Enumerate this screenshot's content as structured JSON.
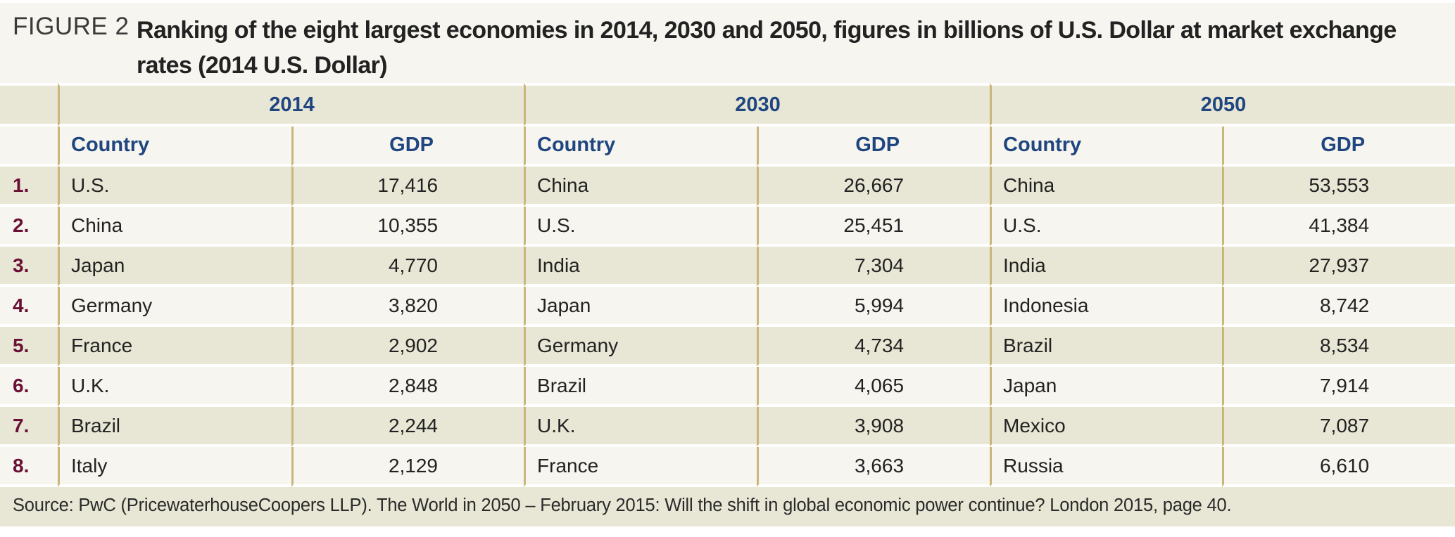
{
  "figure": {
    "label": "FIGURE 2",
    "title": "Ranking of the eight largest economies in 2014, 2030 and 2050, figures in billions of U.S. Dollar at market exchange rates (2014 U.S. Dollar)",
    "source": "Source: PwC (PricewaterhouseCoopers LLP). The World in 2050 – February 2015: Will the shift in global economic power continue? London 2015, page 40."
  },
  "table": {
    "years": [
      "2014",
      "2030",
      "2050"
    ],
    "column_headers": {
      "country": "Country",
      "gdp": "GDP"
    },
    "ranks": [
      "1.",
      "2.",
      "3.",
      "4.",
      "5.",
      "6.",
      "7.",
      "8."
    ],
    "rows": [
      {
        "y2014": {
          "country": "U.S.",
          "gdp": "17,416"
        },
        "y2030": {
          "country": "China",
          "gdp": "26,667"
        },
        "y2050": {
          "country": "China",
          "gdp": "53,553"
        }
      },
      {
        "y2014": {
          "country": "China",
          "gdp": "10,355"
        },
        "y2030": {
          "country": "U.S.",
          "gdp": "25,451"
        },
        "y2050": {
          "country": "U.S.",
          "gdp": "41,384"
        }
      },
      {
        "y2014": {
          "country": "Japan",
          "gdp": "4,770"
        },
        "y2030": {
          "country": "India",
          "gdp": "7,304"
        },
        "y2050": {
          "country": "India",
          "gdp": "27,937"
        }
      },
      {
        "y2014": {
          "country": "Germany",
          "gdp": "3,820"
        },
        "y2030": {
          "country": "Japan",
          "gdp": "5,994"
        },
        "y2050": {
          "country": "Indonesia",
          "gdp": "8,742"
        }
      },
      {
        "y2014": {
          "country": "France",
          "gdp": "2,902"
        },
        "y2030": {
          "country": "Germany",
          "gdp": "4,734"
        },
        "y2050": {
          "country": "Brazil",
          "gdp": "8,534"
        }
      },
      {
        "y2014": {
          "country": "U.K.",
          "gdp": "2,848"
        },
        "y2030": {
          "country": "Brazil",
          "gdp": "4,065"
        },
        "y2050": {
          "country": "Japan",
          "gdp": "7,914"
        }
      },
      {
        "y2014": {
          "country": "Brazil",
          "gdp": "2,244"
        },
        "y2030": {
          "country": "U.K.",
          "gdp": "3,908"
        },
        "y2050": {
          "country": "Mexico",
          "gdp": "7,087"
        }
      },
      {
        "y2014": {
          "country": "Italy",
          "gdp": "2,129"
        },
        "y2030": {
          "country": "France",
          "gdp": "3,663"
        },
        "y2050": {
          "country": "Russia",
          "gdp": "6,610"
        }
      }
    ]
  },
  "colors": {
    "header_text": "#1f4680",
    "rank_text": "#6a0f35",
    "divider": "#c9b77a",
    "band_dark": "#e8e6d4",
    "band_light": "#f7f5ef"
  }
}
